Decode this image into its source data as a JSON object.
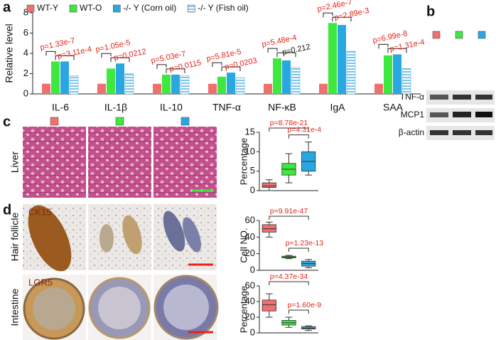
{
  "panel_labels": [
    "a",
    "b",
    "c",
    "d"
  ],
  "group_colors": [
    "#f07070",
    "#3ee83e",
    "#2aa7e0"
  ],
  "blot": {
    "labels": [
      "TNF-α",
      "MCP1",
      "β-actin"
    ]
  },
  "images": {
    "liver": "Liver",
    "hair": "Hair follicle",
    "intestine": "Intestine",
    "ck15": "CK15",
    "lgr5": "LGR5"
  },
  "chart_data": [
    {
      "type": "bar",
      "ylabel": "Relative level",
      "categories": [
        "IL-6",
        "IL-1β",
        "IL-10",
        "TNF-α",
        "NF-κB",
        "IgA",
        "SAA"
      ],
      "series": [
        {
          "name": "WT-Y",
          "color": "#f07070",
          "values": [
            1.0,
            1.0,
            1.0,
            1.0,
            1.0,
            1.0,
            1.0
          ]
        },
        {
          "name": "WT-O",
          "color": "#3ee83e",
          "values": [
            3.2,
            2.5,
            1.9,
            1.7,
            3.5,
            7.0,
            3.8
          ]
        },
        {
          "name": "-/- Y (Corn oil)",
          "color": "#2aa7e0",
          "values": [
            3.2,
            3.0,
            1.9,
            2.1,
            3.3,
            6.8,
            3.9
          ]
        },
        {
          "name": "-/- Y (Fish oil)",
          "color": "#5bb8e8",
          "hatch": true,
          "values": [
            1.8,
            2.0,
            1.8,
            1.6,
            2.6,
            4.2,
            2.5
          ]
        }
      ],
      "ylim": [
        0,
        8
      ],
      "yticks": [
        0,
        2,
        4,
        6,
        8
      ],
      "annotations": [
        [
          {
            "text": "p=1.33e-7",
            "color": "#e8221b"
          },
          {
            "text": "p=3.11e-4",
            "color": "#e8221b"
          }
        ],
        [
          {
            "text": "p=1.05e-5",
            "color": "#e8221b"
          },
          {
            "text": "p=0.0212",
            "color": "#e8221b"
          }
        ],
        [
          {
            "text": "p=5.03e-7",
            "color": "#e8221b"
          },
          {
            "text": "p=0.0115",
            "color": "#e8221b"
          }
        ],
        [
          {
            "text": "p=5.81e-5",
            "color": "#e8221b"
          },
          {
            "text": "p=0.0203",
            "color": "#e8221b"
          }
        ],
        [
          {
            "text": "p=5.48e-4",
            "color": "#e8221b"
          },
          {
            "text": "p=0.212",
            "color": "#111111"
          }
        ],
        [
          {
            "text": "p=2.46e-7",
            "color": "#e8221b"
          },
          {
            "text": "p=2.89e-3",
            "color": "#e8221b"
          }
        ],
        [
          {
            "text": "p=6.99e-8",
            "color": "#e8221b"
          },
          {
            "text": "p=1.31e-4",
            "color": "#e8221b"
          }
        ]
      ]
    },
    {
      "type": "box",
      "ylabel": "Percentage",
      "ylim": [
        0,
        15
      ],
      "yticks": [
        0,
        5,
        10,
        15
      ],
      "boxes": [
        {
          "color": "#f07070",
          "min": 0,
          "q1": 0.8,
          "median": 1.2,
          "q3": 2,
          "max": 2.8
        },
        {
          "color": "#3ee83e",
          "min": 2,
          "q1": 4,
          "median": 5.5,
          "q3": 7,
          "max": 9.5
        },
        {
          "color": "#2aa7e0",
          "min": 4,
          "q1": 5,
          "median": 7.5,
          "q3": 10,
          "max": 12.5
        }
      ],
      "comparisons": [
        {
          "text": "p=8.78e-21",
          "color": "#e8221b"
        },
        {
          "text": "p=4.31e-4",
          "color": "#e8221b"
        }
      ]
    },
    {
      "type": "box",
      "ylabel": "Cell NO.",
      "ylim": [
        0,
        60
      ],
      "yticks": [
        0,
        20,
        40,
        60
      ],
      "boxes": [
        {
          "color": "#f07070",
          "min": 40,
          "q1": 46,
          "median": 50,
          "q3": 55,
          "max": 58
        },
        {
          "color": "#3ee83e",
          "min": 14,
          "q1": 15,
          "median": 16,
          "q3": 17,
          "max": 18
        },
        {
          "color": "#2aa7e0",
          "min": 3,
          "q1": 5,
          "median": 8,
          "q3": 11,
          "max": 13
        }
      ],
      "comparisons": [
        {
          "text": "p=9.91e-47",
          "color": "#e8221b"
        },
        {
          "text": "p=1.23e-13",
          "color": "#e8221b"
        }
      ]
    },
    {
      "type": "box",
      "ylabel": "Percentage",
      "ylim": [
        0,
        60
      ],
      "yticks": [
        0,
        20,
        40,
        60
      ],
      "boxes": [
        {
          "color": "#f07070",
          "min": 20,
          "q1": 28,
          "median": 36,
          "q3": 42,
          "max": 50
        },
        {
          "color": "#3ee83e",
          "min": 7,
          "q1": 10,
          "median": 13,
          "q3": 16,
          "max": 20
        },
        {
          "color": "#2aa7e0",
          "min": 3,
          "q1": 5,
          "median": 6,
          "q3": 8,
          "max": 9
        }
      ],
      "comparisons": [
        {
          "text": "p=4.37e-34",
          "color": "#e8221b"
        },
        {
          "text": "p=1.60e-9",
          "color": "#e8221b"
        }
      ]
    }
  ]
}
